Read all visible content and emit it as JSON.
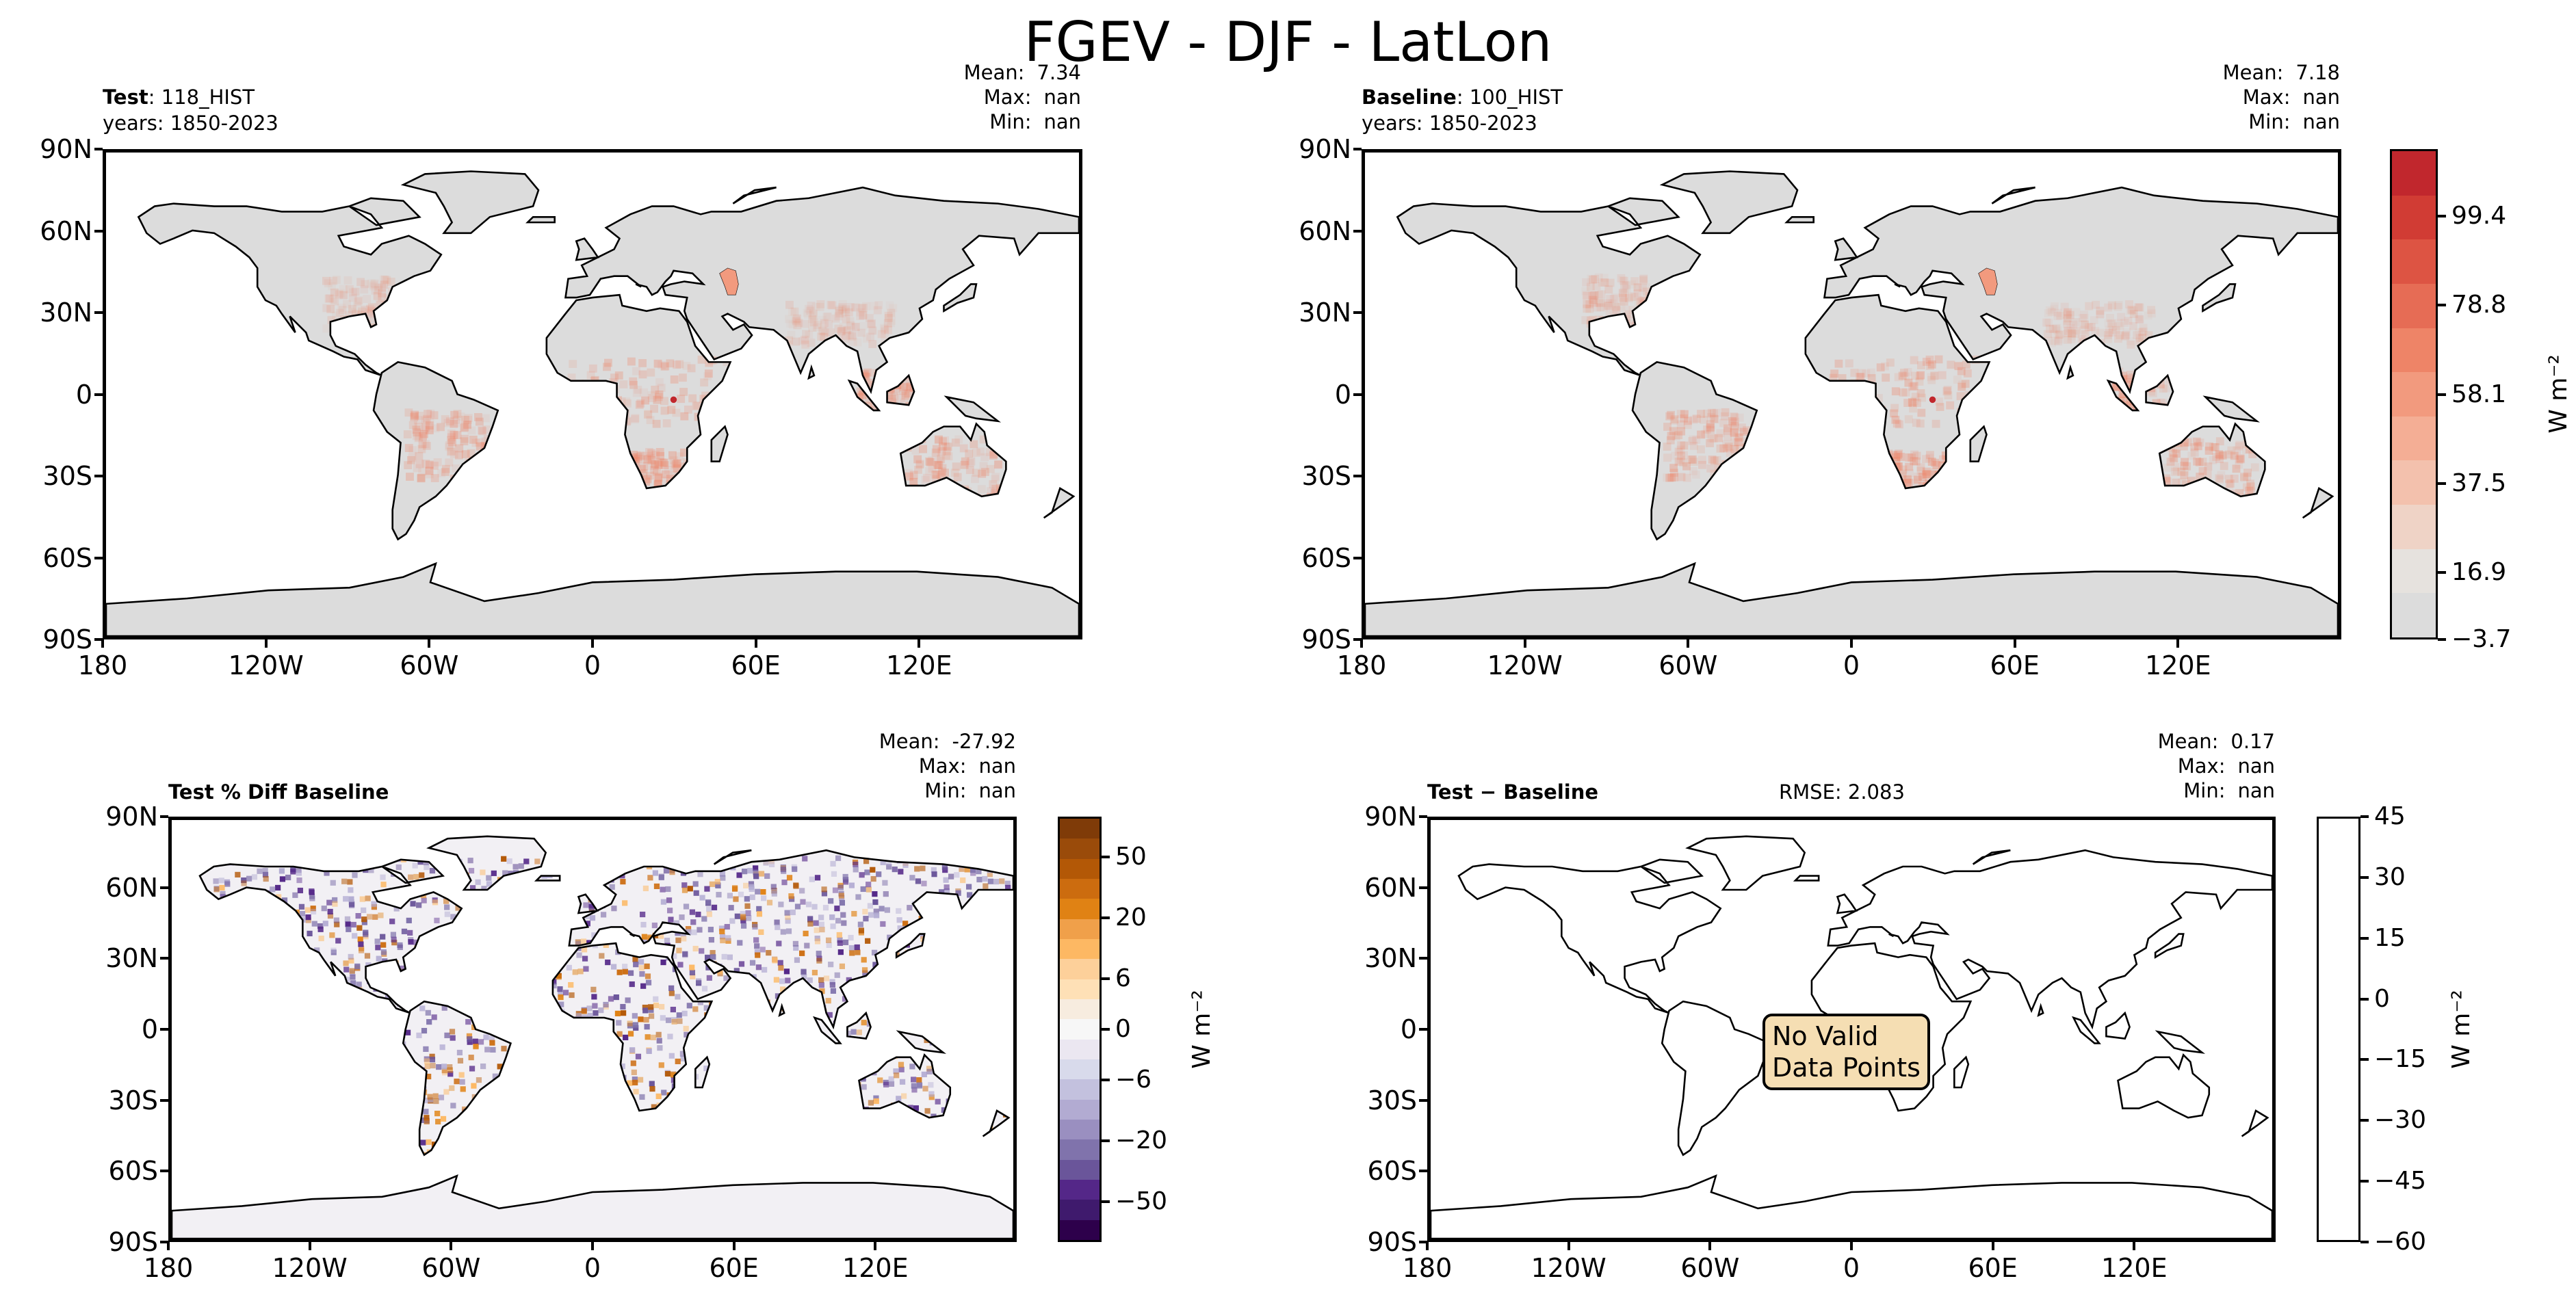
{
  "title": "FGEV - DJF - LatLon",
  "lat_ticks": [
    "90N",
    "60N",
    "30N",
    "0",
    "30S",
    "60S",
    "90S"
  ],
  "lon_ticks": [
    "180",
    "120W",
    "60W",
    "0",
    "60E",
    "120E"
  ],
  "panels": {
    "test": {
      "label": "Test",
      "case": ": 118_HIST",
      "years": "years: 1850-2023",
      "stats": {
        "mean_label": "Mean:",
        "mean": "7.34",
        "max_label": "Max:",
        "max": "nan",
        "min_label": "Min:",
        "min": "nan"
      }
    },
    "baseline": {
      "label": "Baseline",
      "case": ": 100_HIST",
      "years": "years: 1850-2023",
      "stats": {
        "mean_label": "Mean:",
        "mean": "7.18",
        "max_label": "Max:",
        "max": "nan",
        "min_label": "Min:",
        "min": "nan"
      }
    },
    "pctdiff": {
      "label": "Test % Diff Baseline",
      "stats": {
        "mean_label": "Mean:",
        "mean": "-27.92",
        "max_label": "Max:",
        "max": "nan",
        "min_label": "Min:",
        "min": "nan"
      }
    },
    "diff": {
      "label": "Test − Baseline",
      "rmse": "RMSE: 2.083",
      "stats": {
        "mean_label": "Mean:",
        "mean": "0.17",
        "max_label": "Max:",
        "max": "nan",
        "min_label": "Min:",
        "min": "nan"
      },
      "nodata_line1": "No Valid",
      "nodata_line2": "Data Points"
    }
  },
  "colorbars": {
    "top": {
      "ticks": [
        "99.4",
        "78.8",
        "58.1",
        "37.5",
        "16.9",
        "−3.7"
      ],
      "units": "W m⁻²",
      "colors": [
        "#c1272d",
        "#d13c34",
        "#dd5443",
        "#e66c55",
        "#ee8467",
        "#f29a7e",
        "#f4ae95",
        "#f3c1ad",
        "#efd3c6",
        "#e6e2de",
        "#dcdcdc"
      ]
    },
    "pctdiff": {
      "ticks": [
        "50",
        "20",
        "6",
        "0",
        "−6",
        "−20",
        "−50"
      ],
      "units": "W m⁻²",
      "colors": [
        "#7f3b08",
        "#9a4b0a",
        "#b35806",
        "#cc6c0f",
        "#e08214",
        "#f0a04a",
        "#fdb863",
        "#fdd09a",
        "#fee0b6",
        "#f7ecdf",
        "#f7f7f7",
        "#ebe7f1",
        "#d8daeb",
        "#c3c1de",
        "#b2abd2",
        "#9a8fc0",
        "#8073ac",
        "#6a559a",
        "#542788",
        "#3f1a6d",
        "#2d004b"
      ]
    },
    "diff": {
      "ticks": [
        "45",
        "30",
        "15",
        "0",
        "−15",
        "−30",
        "−45",
        "−60"
      ],
      "units": "W m⁻²"
    }
  },
  "colors": {
    "land": "#dcdcdc",
    "highlight": "#f4b9a3",
    "frame": "#000000",
    "nodata_box": "#f5deb3"
  }
}
